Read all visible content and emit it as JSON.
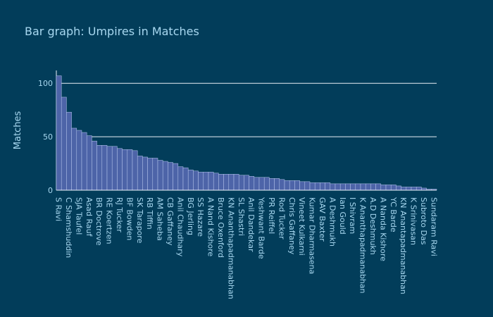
{
  "chart_data": {
    "type": "bar",
    "title": "Bar graph: Umpires in Matches",
    "y_label": "Matches",
    "categories": [
      "S Ravi",
      null,
      "C Shamshuddin",
      null,
      "SJA Taufel",
      null,
      "Asad Rauf",
      null,
      "BR Doctrove",
      null,
      "RE Koertzen",
      null,
      "RJ Tucker",
      null,
      "BF Bowden",
      null,
      "SK Tarapore",
      null,
      "RB Tiffin",
      null,
      "AM Saheba",
      null,
      "CB Gaffaney",
      null,
      "Anil Chaudhary",
      null,
      "BG Jerling",
      null,
      "SS Hazare",
      null,
      "A Nand Kishore",
      null,
      "Bruce Oxenford",
      null,
      "KN Ananthapadmanabhan",
      null,
      "SL Shastri",
      null,
      "Anil Dandekar",
      null,
      "Yeshwant Barde",
      null,
      "PR Reiffel",
      null,
      "Rod Tucker",
      null,
      "Chris Gaffaney",
      null,
      "Vineet Kulkarni",
      null,
      "Kumar Dharmasena",
      null,
      "GAV Baxter",
      null,
      "A Deshmukh",
      null,
      "Ian Gould",
      null,
      "I Shivram",
      null,
      "K Ananthapadmanabhan",
      null,
      "A.D Deshmukh",
      null,
      "A Nanda Kishore",
      null,
      "YC Barde",
      null,
      "KN Anantapadmanabhan",
      null,
      "K Srinivasan",
      null,
      "Subroto Das",
      null,
      "Sundaram Ravi"
    ],
    "values": [
      107,
      87,
      73,
      58,
      56,
      54,
      51,
      46,
      42,
      42,
      41,
      41,
      39,
      38,
      38,
      37,
      32,
      31,
      30,
      30,
      28,
      27,
      26,
      25,
      22,
      21,
      19,
      18,
      17,
      17,
      17,
      16,
      15,
      15,
      15,
      15,
      14,
      14,
      13,
      12,
      12,
      12,
      11,
      11,
      10,
      9,
      9,
      9,
      8,
      8,
      7,
      7,
      7,
      7,
      6,
      6,
      6,
      6,
      6,
      6,
      6,
      6,
      6,
      6,
      5,
      5,
      5,
      4,
      3,
      3,
      3,
      3,
      2,
      1,
      1
    ],
    "color": "#4d64a8",
    "ylim": [
      0,
      112
    ],
    "yticks": [
      0,
      50,
      100
    ],
    "grid": true
  }
}
